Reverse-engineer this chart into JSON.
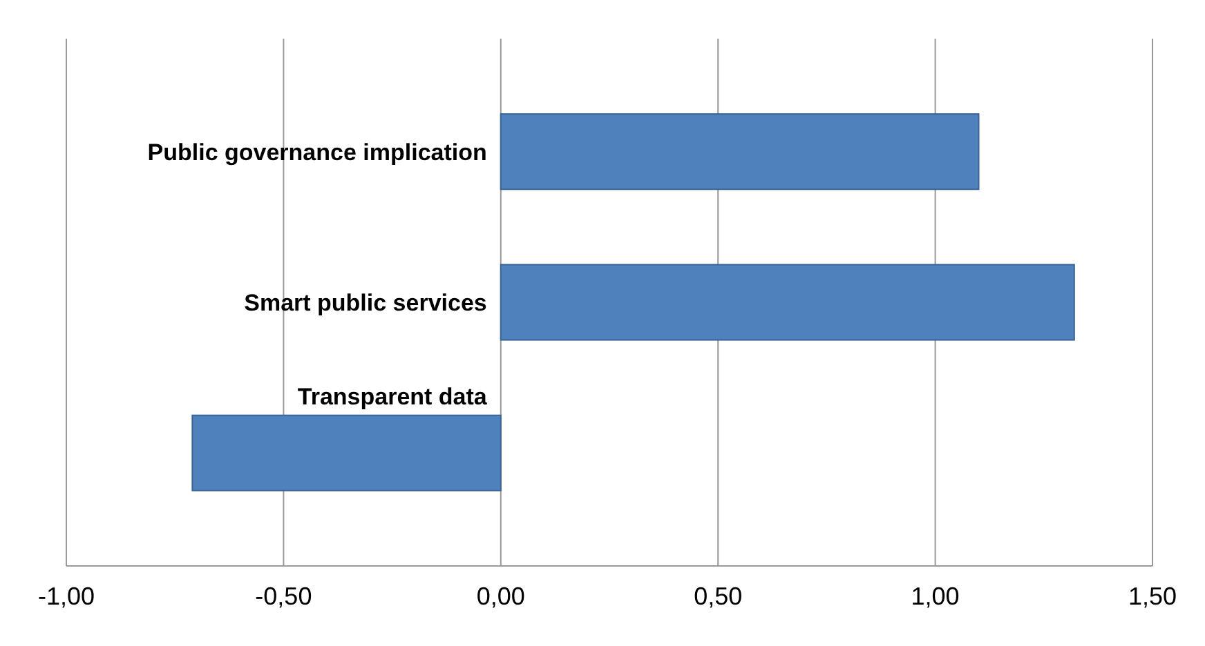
{
  "chart_data": {
    "type": "bar",
    "orientation": "horizontal",
    "categories": [
      "Public governance implication",
      "Smart public services",
      "Transparent data"
    ],
    "values": [
      1.1,
      1.32,
      -0.71
    ],
    "color": "#4f81bd",
    "xlim": [
      -1,
      1.5
    ],
    "xticks": [
      {
        "value": -1,
        "label": "-1,00"
      },
      {
        "value": -0.5,
        "label": "-0,50"
      },
      {
        "value": 0,
        "label": "0,00"
      },
      {
        "value": 0.5,
        "label": "0,50"
      },
      {
        "value": 1,
        "label": "1,00"
      },
      {
        "value": 1.5,
        "label": "1,50"
      }
    ],
    "grid": "x"
  }
}
